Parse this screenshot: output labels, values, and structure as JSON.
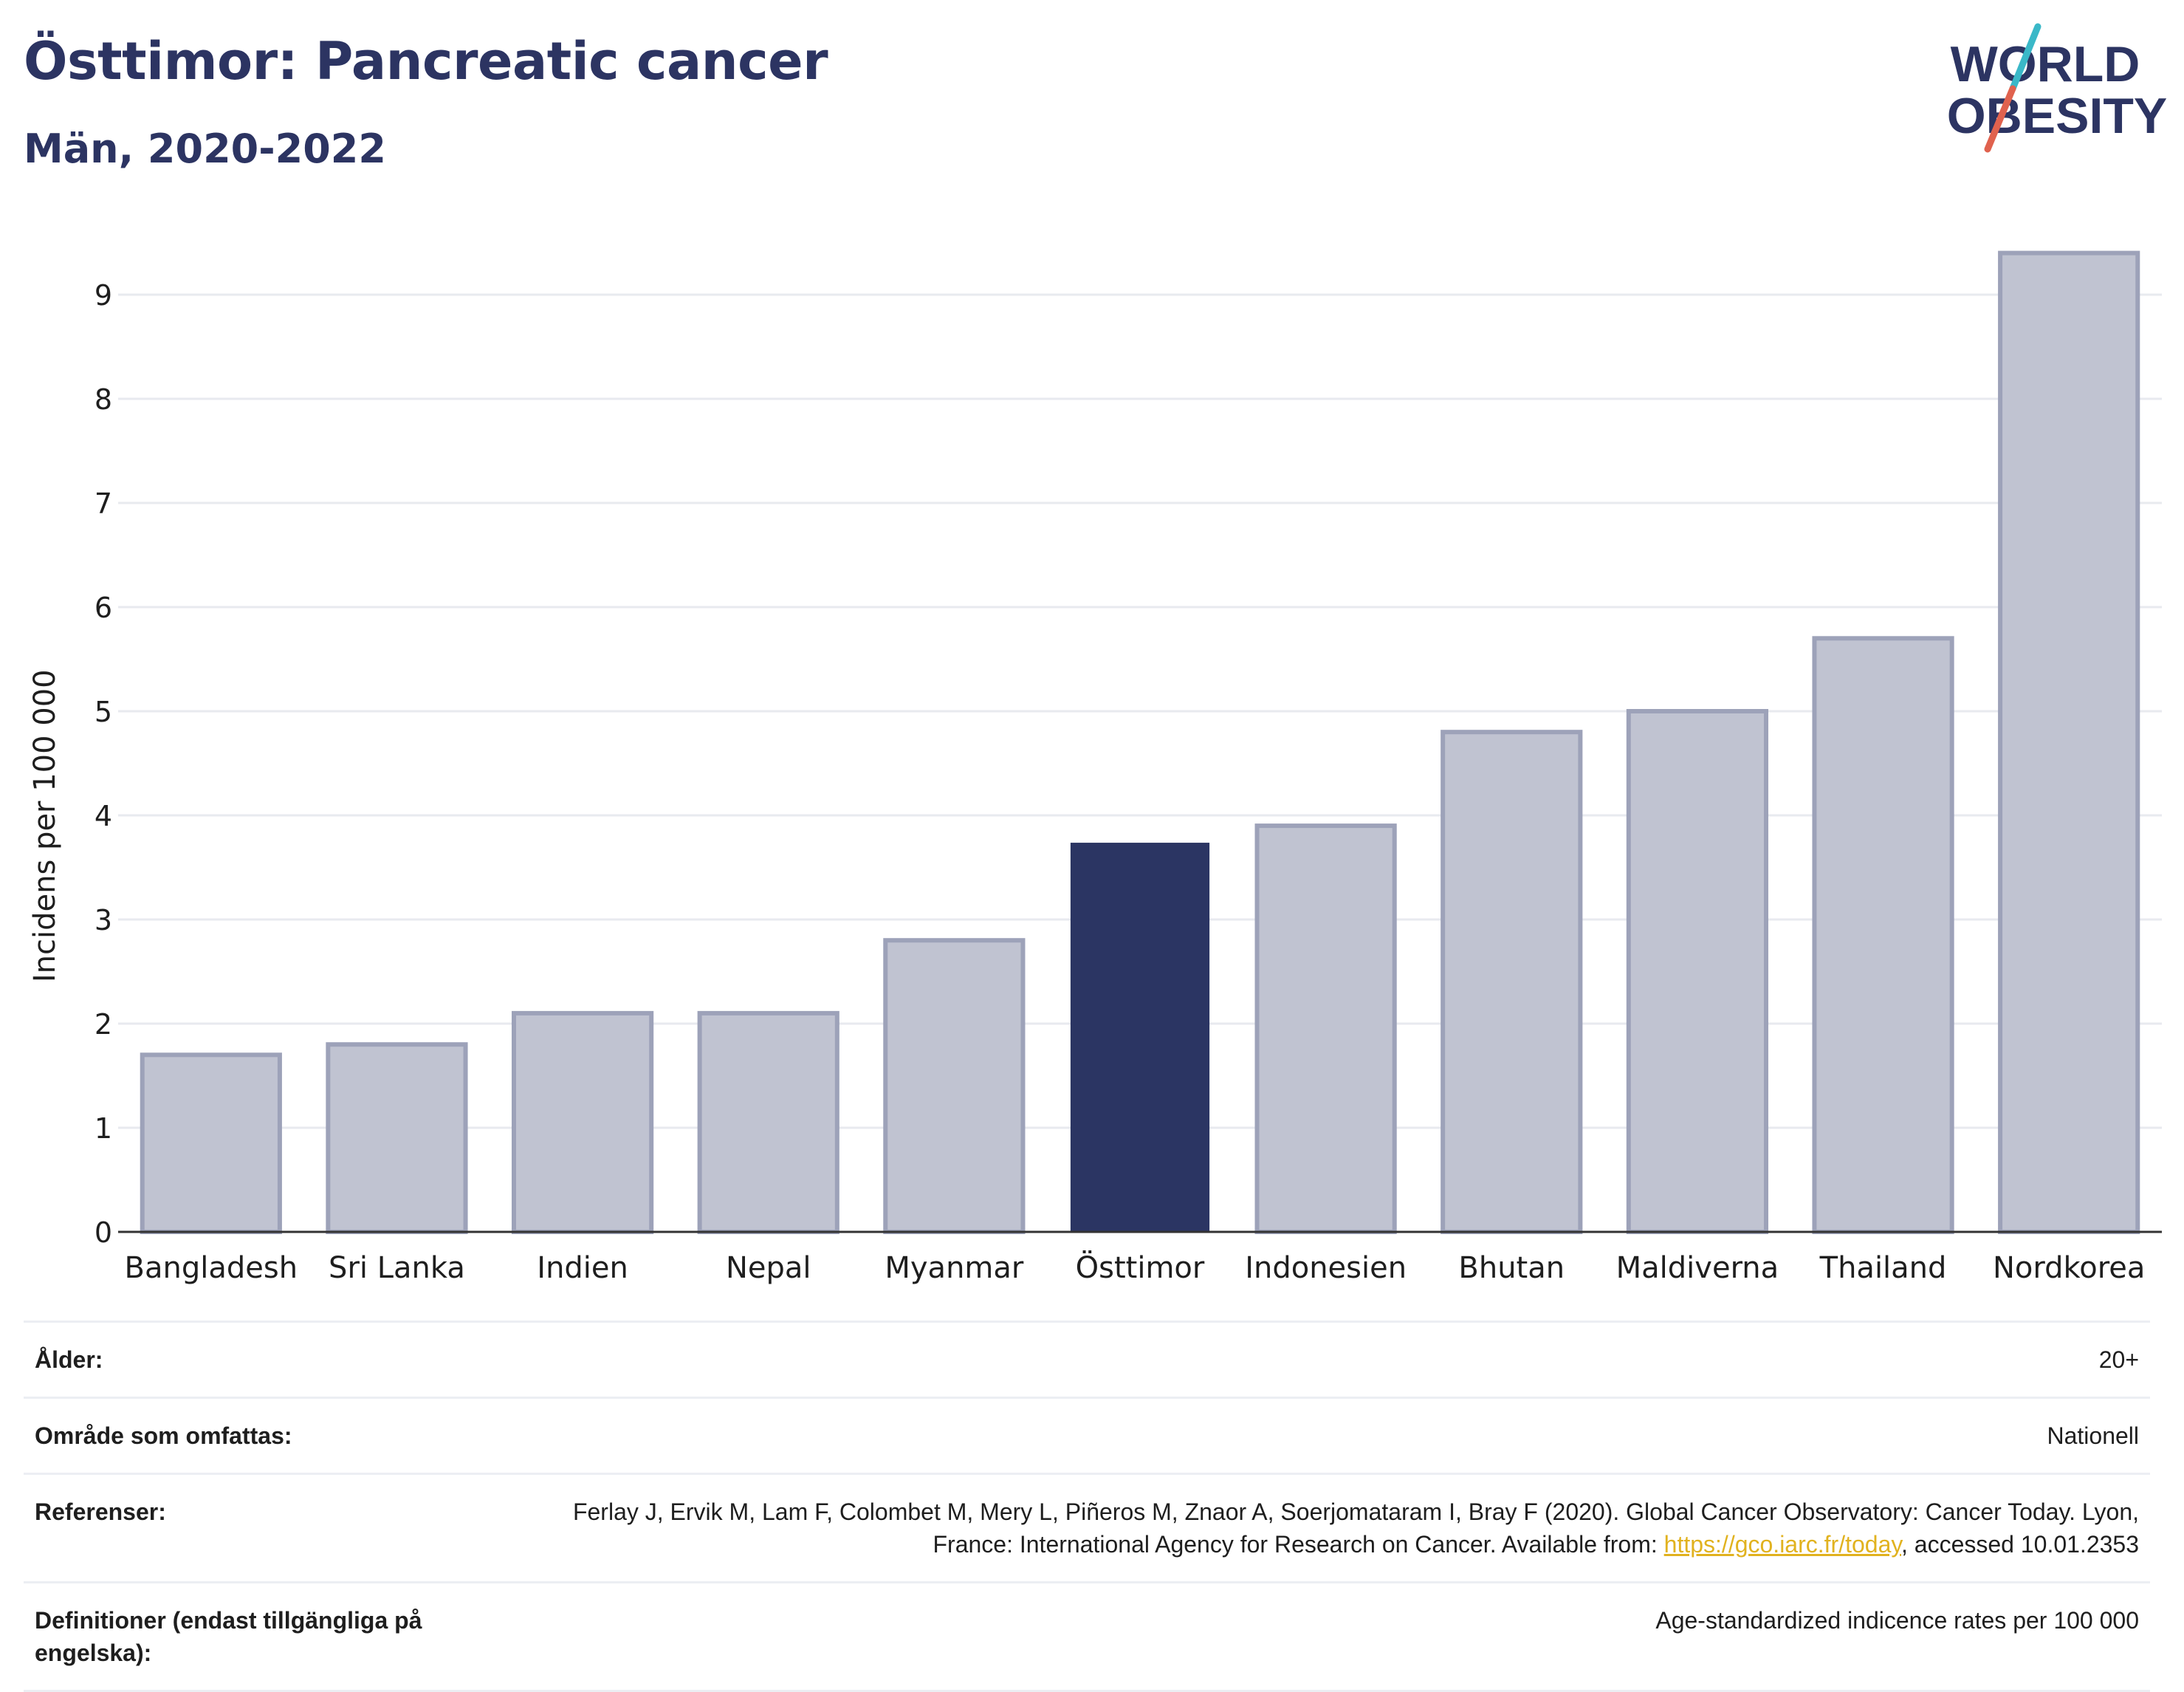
{
  "header": {
    "title": "Östtimor: Pancreatic cancer",
    "subtitle": "Män, 2020-2022"
  },
  "logo": {
    "line1": "WORLD",
    "line2": "OBESITY",
    "colors": {
      "text": "#2c3462",
      "slash_top": "#3ab8c8",
      "slash_bottom": "#e0624e"
    }
  },
  "chart_data": {
    "type": "bar",
    "categories": [
      "Bangladesh",
      "Sri Lanka",
      "Indien",
      "Nepal",
      "Myanmar",
      "Östtimor",
      "Indonesien",
      "Bhutan",
      "Maldiverna",
      "Thailand",
      "Nordkorea"
    ],
    "values": [
      1.7,
      1.8,
      2.1,
      2.1,
      2.8,
      3.73,
      3.9,
      4.8,
      5.0,
      5.7,
      9.4
    ],
    "highlight": "Östtimor",
    "xlabel": "",
    "ylabel": "Incidens per 100 000",
    "ylim": [
      0,
      9.5
    ],
    "yticks": [
      0,
      1,
      2,
      3,
      4,
      5,
      6,
      7,
      8,
      9
    ],
    "grid": true,
    "colors": {
      "bar": "#c0c3d1",
      "bar_edge": "#9da2b9",
      "highlight": "#2b3563",
      "grid": "#e8eaef",
      "axis": "#333333"
    }
  },
  "meta": {
    "age_label": "Ålder:",
    "age_value": "20+",
    "area_label": "Område som omfattas:",
    "area_value": "Nationell",
    "ref_label": "Referenser:",
    "ref_text_before": "Ferlay J, Ervik M, Lam F, Colombet M, Mery L, Piñeros M, Znaor A, Soerjomataram I, Bray F (2020). Global Cancer Observatory: Cancer Today. Lyon, France: International Agency for Research on Cancer. Available from: ",
    "ref_link": "https://gco.iarc.fr/today",
    "ref_text_after": ", accessed 10.01.2353",
    "def_label": "Definitioner (endast tillgängliga på engelska):",
    "def_value": "Age-standardized indicence rates per 100 000"
  }
}
